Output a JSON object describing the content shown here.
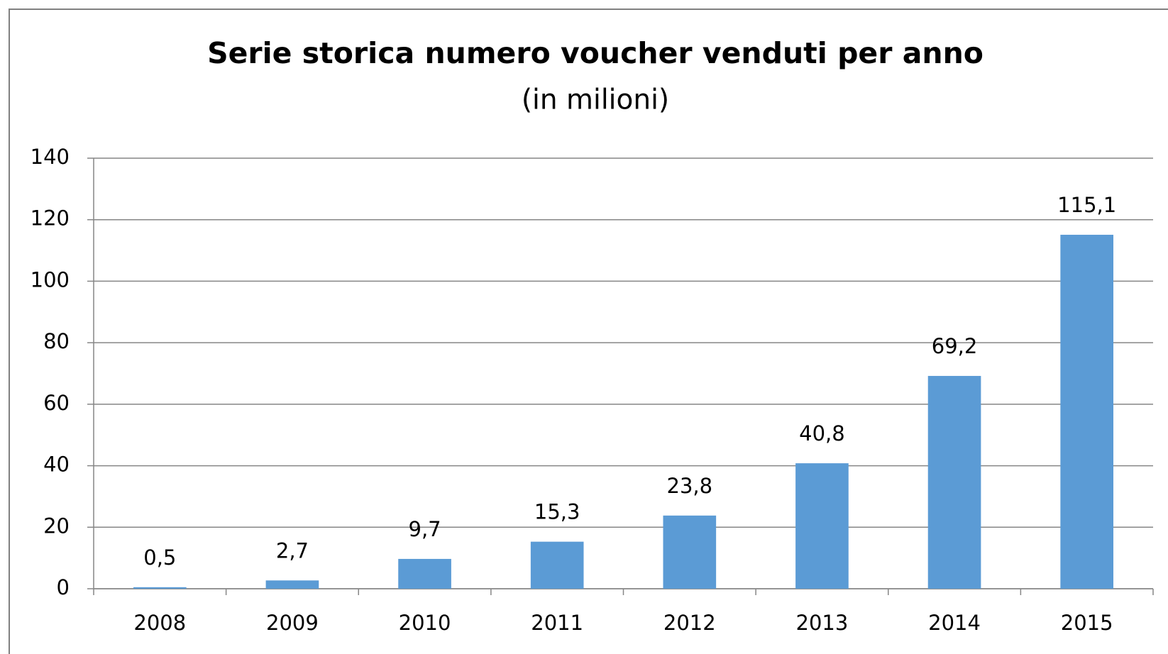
{
  "chart_data": {
    "type": "bar",
    "title": "Serie storica numero voucher venduti per anno",
    "subtitle": "(in milioni)",
    "categories": [
      "2008",
      "2009",
      "2010",
      "2011",
      "2012",
      "2013",
      "2014",
      "2015"
    ],
    "values": [
      0.5,
      2.7,
      9.7,
      15.3,
      23.8,
      40.8,
      69.2,
      115.1
    ],
    "value_labels": [
      "0,5",
      "2,7",
      "9,7",
      "15,3",
      "23,8",
      "40,8",
      "69,2",
      "115,1"
    ],
    "color": "#5b9bd5",
    "ylim": [
      0,
      140
    ],
    "yticks": [
      0,
      20,
      40,
      60,
      80,
      100,
      120,
      140
    ],
    "grid": true
  }
}
